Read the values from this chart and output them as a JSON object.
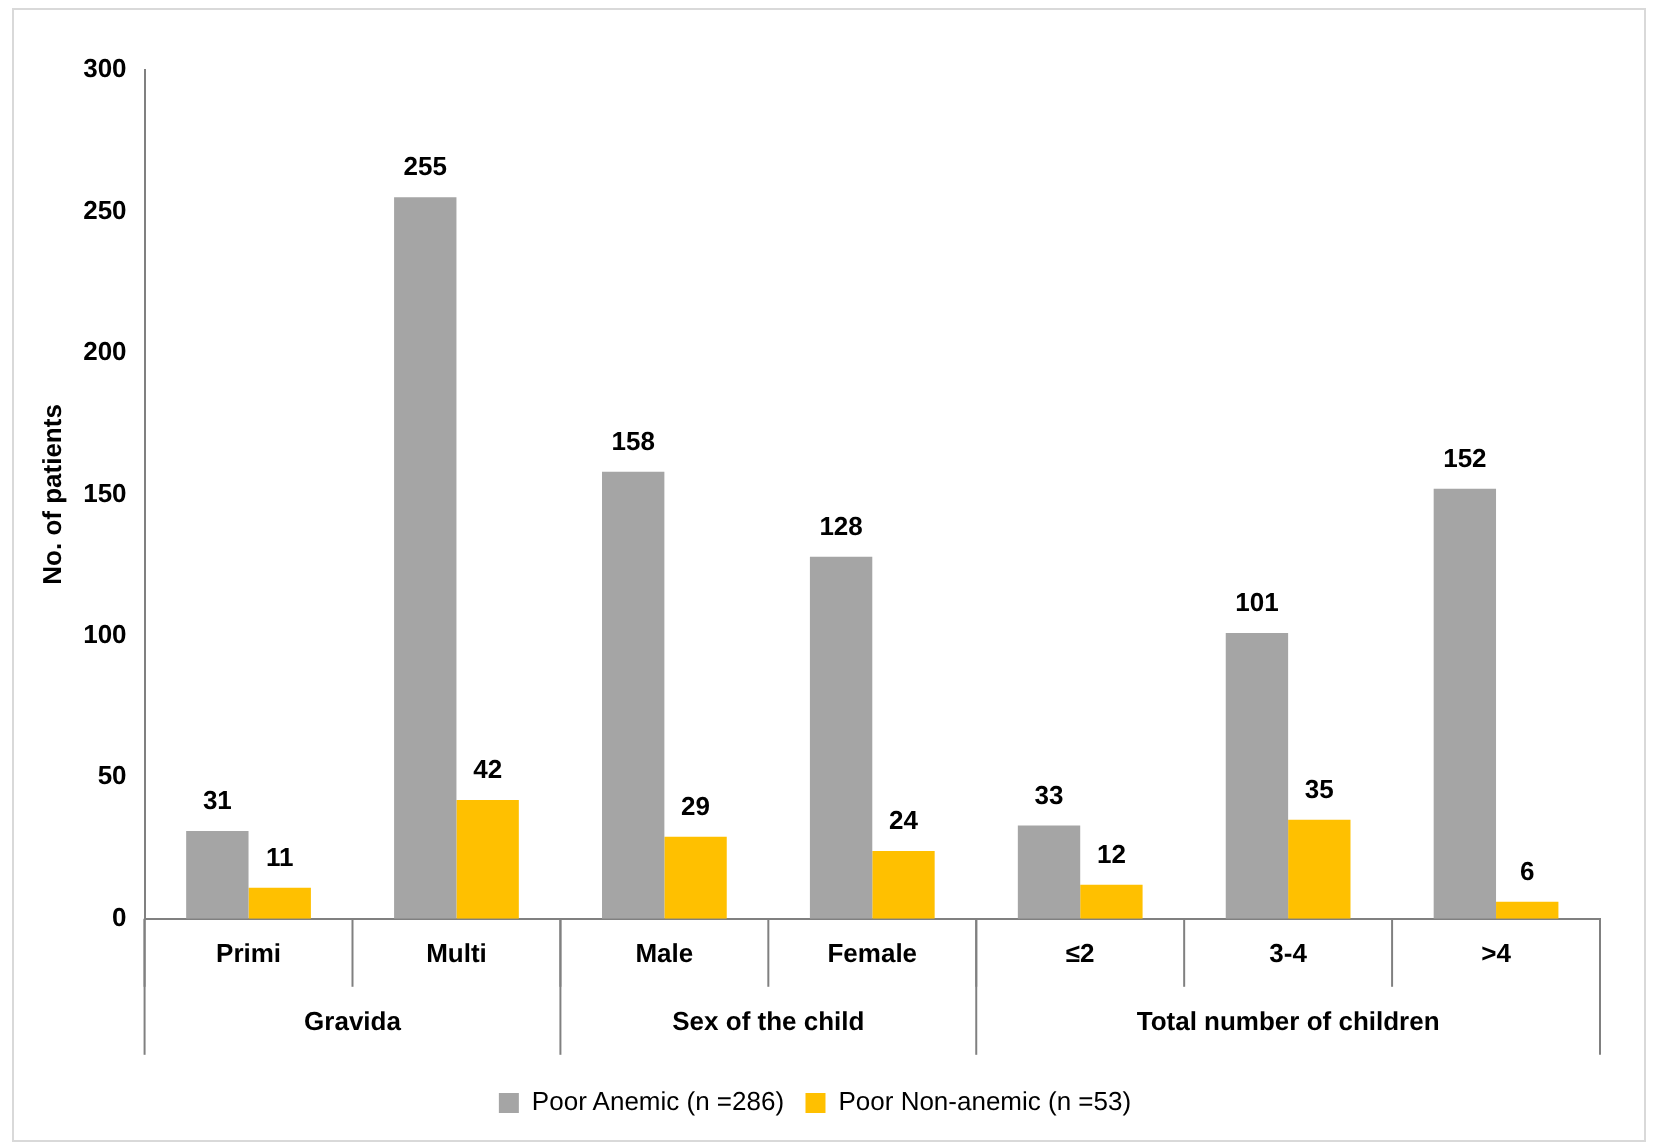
{
  "chart_data": {
    "type": "bar",
    "ylabel": "No. of patients",
    "categories": [
      "Primi",
      "Multi",
      "Male",
      "Female",
      "≤2",
      "3-4",
      ">4"
    ],
    "series": [
      {
        "name": "Poor Anemic (n =286)",
        "color": "#a5a5a5",
        "values": [
          31,
          255,
          158,
          128,
          33,
          101,
          152
        ]
      },
      {
        "name": "Poor Non-anemic (n =53)",
        "color": "#ffc000",
        "values": [
          11,
          42,
          29,
          24,
          12,
          35,
          6
        ]
      }
    ],
    "ylim": [
      0,
      300
    ],
    "yticks": [
      0,
      50,
      100,
      150,
      200,
      250,
      300
    ],
    "grid": false,
    "legend": "bottom",
    "data_labels": true,
    "annotations": [
      "Gravida",
      "Sex of the child",
      "Total number of children"
    ]
  }
}
